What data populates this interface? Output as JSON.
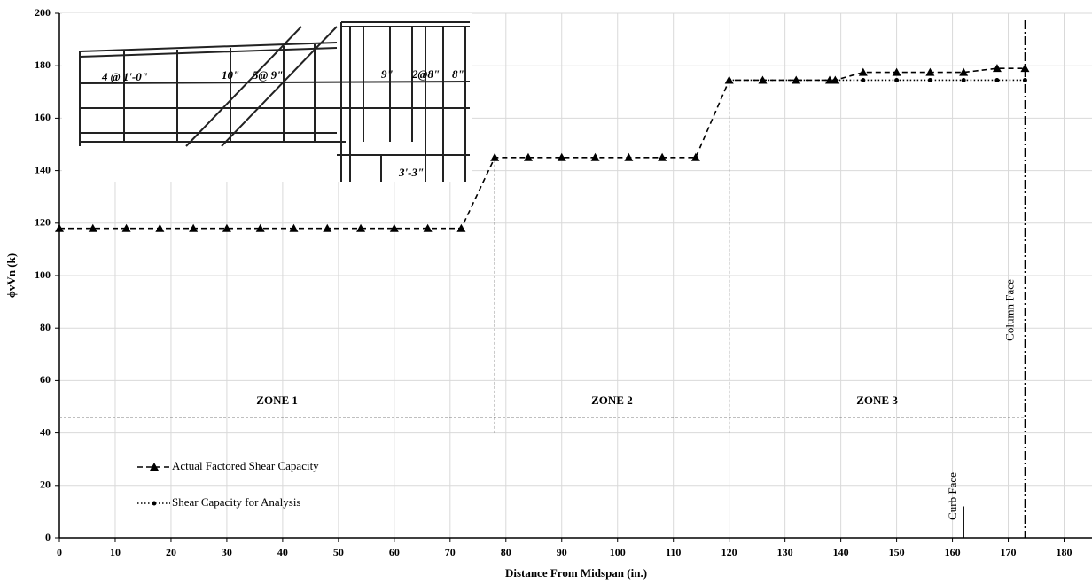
{
  "chart_data": {
    "type": "line",
    "x_label": "Distance From Midspan (in.)",
    "y_label": "ϕvVn (k)",
    "xlim": [
      0,
      185
    ],
    "ylim": [
      0,
      200
    ],
    "xticks": [
      0,
      10,
      20,
      30,
      40,
      50,
      60,
      70,
      80,
      90,
      100,
      110,
      120,
      130,
      140,
      150,
      160,
      170,
      180
    ],
    "yticks": [
      0,
      20,
      40,
      60,
      80,
      100,
      120,
      140,
      160,
      180,
      200
    ],
    "grid": true,
    "legend": "lower left",
    "series": [
      {
        "name": "Actual Factored Shear Capacity",
        "color": "#000000",
        "marker": "triangle",
        "style": "dashed",
        "x": [
          0,
          6,
          12,
          18,
          24,
          30,
          36,
          42,
          48,
          54,
          60,
          66,
          72,
          78,
          84,
          90,
          96,
          102,
          108,
          114,
          120,
          126,
          132,
          138,
          139,
          144,
          150,
          156,
          162,
          168,
          173
        ],
        "values": [
          118,
          118,
          118,
          118,
          118,
          118,
          118,
          118,
          118,
          118,
          118,
          118,
          118,
          145,
          145,
          145,
          145,
          145,
          145,
          145,
          174.5,
          174.5,
          174.5,
          174.5,
          174.5,
          177.5,
          177.5,
          177.5,
          177.5,
          179,
          179
        ]
      },
      {
        "name": "Shear Capacity for Analysis",
        "color": "#000000",
        "marker": "circle",
        "style": "dotted",
        "x": [
          120,
          126,
          132,
          138,
          139,
          144,
          150,
          156,
          162,
          168,
          173
        ],
        "values": [
          174.5,
          174.5,
          174.5,
          174.5,
          174.5,
          174.5,
          174.5,
          174.5,
          174.5,
          174.5,
          174.5
        ]
      }
    ],
    "zones": [
      {
        "label": "ZONE 1",
        "from": 0,
        "to": 78
      },
      {
        "label": "ZONE 2",
        "from": 78,
        "to": 120
      },
      {
        "label": "ZONE 3",
        "from": 120,
        "to": 173
      }
    ],
    "zone_line_y": 46,
    "column_face": {
      "label": "Column Face",
      "x": 173
    },
    "curb_face": {
      "label": "Curb Face",
      "x": 162,
      "height": 12
    },
    "inset_labels": [
      "4 @ 1'-0\"",
      "10\"",
      "5@ 9\"",
      "9\"",
      "2@8\"",
      "8\"",
      "3'-3\""
    ]
  }
}
